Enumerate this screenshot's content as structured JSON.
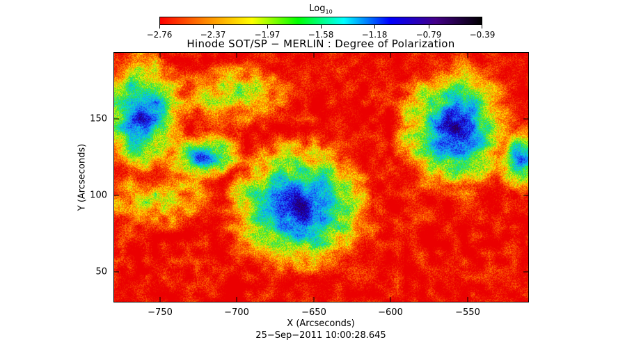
{
  "colorbar": {
    "title_main": "Log",
    "title_sub": "10",
    "tick_labels": [
      "−2.76",
      "−2.37",
      "−1.97",
      "−1.58",
      "−1.18",
      "−0.79",
      "−0.39"
    ],
    "colors": [
      "#ff0000",
      "#ff8800",
      "#ffff00",
      "#00ff00",
      "#00ffff",
      "#0000ff",
      "#440088",
      "#000000"
    ]
  },
  "plot": {
    "title": "Hinode SOT/SP − MERLIN : Degree of Polarization",
    "xlabel": "X (Arcseconds)",
    "ylabel": "Y (Arcseconds)",
    "x_ticks": [
      "−750",
      "−700",
      "−650",
      "−600",
      "−550"
    ],
    "y_ticks": [
      "150",
      "100",
      "50"
    ],
    "datestamp": "25−Sep−2011 10:00:28.645"
  }
}
